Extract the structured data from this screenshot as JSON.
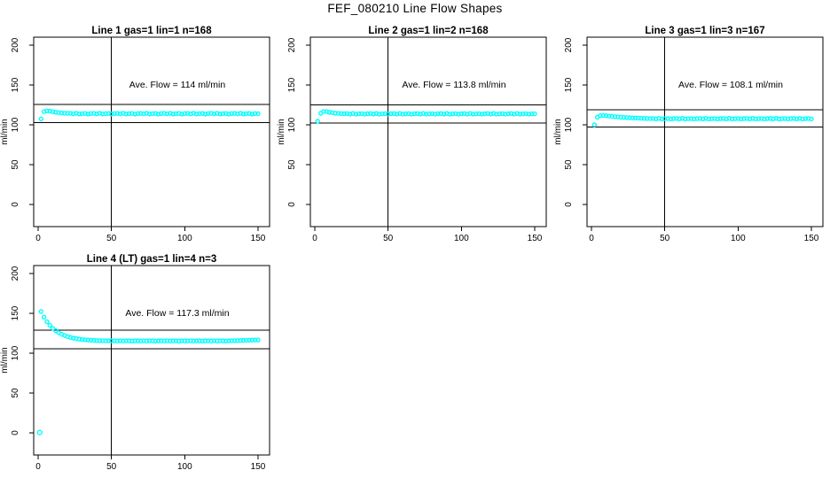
{
  "page_title": "FEF_080210  Line Flow Shapes",
  "colors": {
    "marker": "#00ffff",
    "axis": "#000000",
    "background": "#ffffff"
  },
  "axes": {
    "xlim": [
      0,
      150
    ],
    "ylim": [
      0,
      200
    ],
    "x_ticks": [
      0,
      50,
      100,
      150
    ],
    "y_ticks": [
      0,
      50,
      100,
      150,
      200
    ],
    "ylabel": "ml/min",
    "xlabel": "",
    "grid": false,
    "vline_x": 50
  },
  "chart_data": [
    {
      "type": "scatter",
      "title": "Line 1 gas=1 lin=1 n=168",
      "annotation": "Ave. Flow =  114  ml/min",
      "ave_flow": 114,
      "hlines": [
        125.4,
        102.6
      ],
      "vline_x": 50,
      "x_start": 2,
      "x_step": 2,
      "y": [
        107.5,
        116.5,
        117.5,
        117.2,
        116.4,
        115.8,
        115.3,
        114.9,
        114.6,
        114.4,
        114.3,
        113.8,
        114.4,
        113.7,
        114.0,
        114.2,
        113.6,
        114.1,
        114.3,
        113.8,
        114.4,
        113.7,
        114.0,
        114.2,
        113.6,
        114.1,
        114.3,
        113.8,
        114.4,
        113.7,
        114.0,
        114.2,
        113.6,
        114.1,
        114.3,
        113.8,
        114.4,
        113.7,
        114.0,
        114.2,
        113.6,
        114.1,
        114.3,
        113.8,
        114.4,
        113.7,
        114.0,
        114.2,
        113.6,
        114.1,
        114.3,
        113.8,
        114.4,
        113.7,
        114.0,
        114.2,
        113.6,
        114.1,
        114.3,
        113.8,
        114.4,
        113.7,
        114.0,
        114.2,
        113.6,
        114.1,
        114.3,
        113.8,
        114.4,
        113.7,
        114.0,
        114.2,
        113.6,
        114.1,
        114.0
      ],
      "extra_points": []
    },
    {
      "type": "scatter",
      "title": "Line 2 gas=1 lin=2 n=168",
      "annotation": "Ave. Flow =  113.8  ml/min",
      "ave_flow": 113.8,
      "hlines": [
        125.2,
        102.4
      ],
      "vline_x": 50,
      "x_start": 2,
      "x_step": 2,
      "y": [
        104.5,
        114.5,
        116.8,
        116.5,
        115.8,
        115.2,
        114.7,
        114.3,
        114.1,
        113.9,
        114.1,
        113.5,
        114.2,
        113.4,
        113.8,
        114.0,
        113.4,
        113.9,
        114.1,
        113.5,
        114.2,
        113.4,
        113.8,
        114.0,
        113.4,
        113.9,
        114.1,
        113.5,
        114.2,
        113.4,
        113.8,
        114.0,
        113.4,
        113.9,
        114.1,
        113.5,
        114.2,
        113.4,
        113.8,
        114.0,
        113.4,
        113.9,
        114.1,
        113.5,
        114.2,
        113.4,
        113.8,
        114.0,
        113.4,
        113.9,
        114.1,
        113.5,
        114.2,
        113.4,
        113.8,
        114.0,
        113.4,
        113.9,
        114.1,
        113.5,
        114.2,
        113.4,
        113.8,
        114.0,
        113.4,
        113.9,
        114.1,
        113.5,
        114.2,
        113.4,
        113.8,
        114.0,
        113.4,
        113.9,
        113.8
      ],
      "extra_points": []
    },
    {
      "type": "scatter",
      "title": "Line 3 gas=1 lin=3 n=167",
      "annotation": "Ave. Flow =  108.1  ml/min",
      "ave_flow": 108.1,
      "hlines": [
        118.9,
        97.3
      ],
      "vline_x": 50,
      "x_start": 2,
      "x_step": 2,
      "y": [
        100.0,
        109.5,
        111.5,
        111.8,
        111.4,
        111.0,
        110.6,
        110.2,
        109.9,
        109.6,
        109.3,
        109.1,
        108.9,
        108.7,
        108.5,
        108.4,
        108.2,
        108.1,
        108.0,
        107.9,
        108.0,
        107.4,
        108.1,
        107.3,
        107.7,
        107.9,
        107.3,
        107.8,
        108.0,
        107.4,
        108.1,
        107.3,
        107.7,
        107.9,
        107.3,
        107.8,
        108.0,
        107.4,
        108.1,
        107.3,
        107.7,
        107.9,
        107.3,
        107.8,
        108.0,
        107.4,
        108.1,
        107.3,
        107.7,
        107.9,
        107.3,
        107.8,
        108.0,
        107.4,
        108.1,
        107.3,
        107.7,
        107.9,
        107.3,
        107.8,
        108.0,
        107.4,
        108.1,
        107.3,
        107.7,
        107.9,
        107.3,
        107.8,
        108.0,
        107.4,
        108.1,
        107.3,
        107.7,
        107.9,
        107.3
      ],
      "extra_points": []
    },
    {
      "type": "scatter",
      "title": "Line 4 (LT) gas=1 lin=4 n=3",
      "annotation": "Ave. Flow =  117.3  ml/min",
      "ave_flow": 117.3,
      "hlines": [
        129.0,
        105.6
      ],
      "vline_x": 50,
      "x_start": 2,
      "x_step": 2,
      "y": [
        152.3,
        145.2,
        139.6,
        135.0,
        131.2,
        128.2,
        125.8,
        123.8,
        122.2,
        120.9,
        119.8,
        118.9,
        118.3,
        117.7,
        117.2,
        116.9,
        116.6,
        116.3,
        116.1,
        115.9,
        115.8,
        115.7,
        115.6,
        115.6,
        115.5,
        115.6,
        115.3,
        115.7,
        115.3,
        115.5,
        115.6,
        115.2,
        115.5,
        115.6,
        115.3,
        115.7,
        115.3,
        115.5,
        115.6,
        115.2,
        115.5,
        115.6,
        115.3,
        115.7,
        115.3,
        115.5,
        115.6,
        115.2,
        115.5,
        115.6,
        115.3,
        115.7,
        115.3,
        115.5,
        115.6,
        115.2,
        115.5,
        115.6,
        115.3,
        115.7,
        115.3,
        115.5,
        115.6,
        115.2,
        115.5,
        115.7,
        115.8,
        115.9,
        116.0,
        116.1,
        116.2,
        116.3,
        116.4,
        116.5,
        116.6
      ],
      "extra_points": [
        [
          1,
          0.5
        ]
      ]
    }
  ]
}
